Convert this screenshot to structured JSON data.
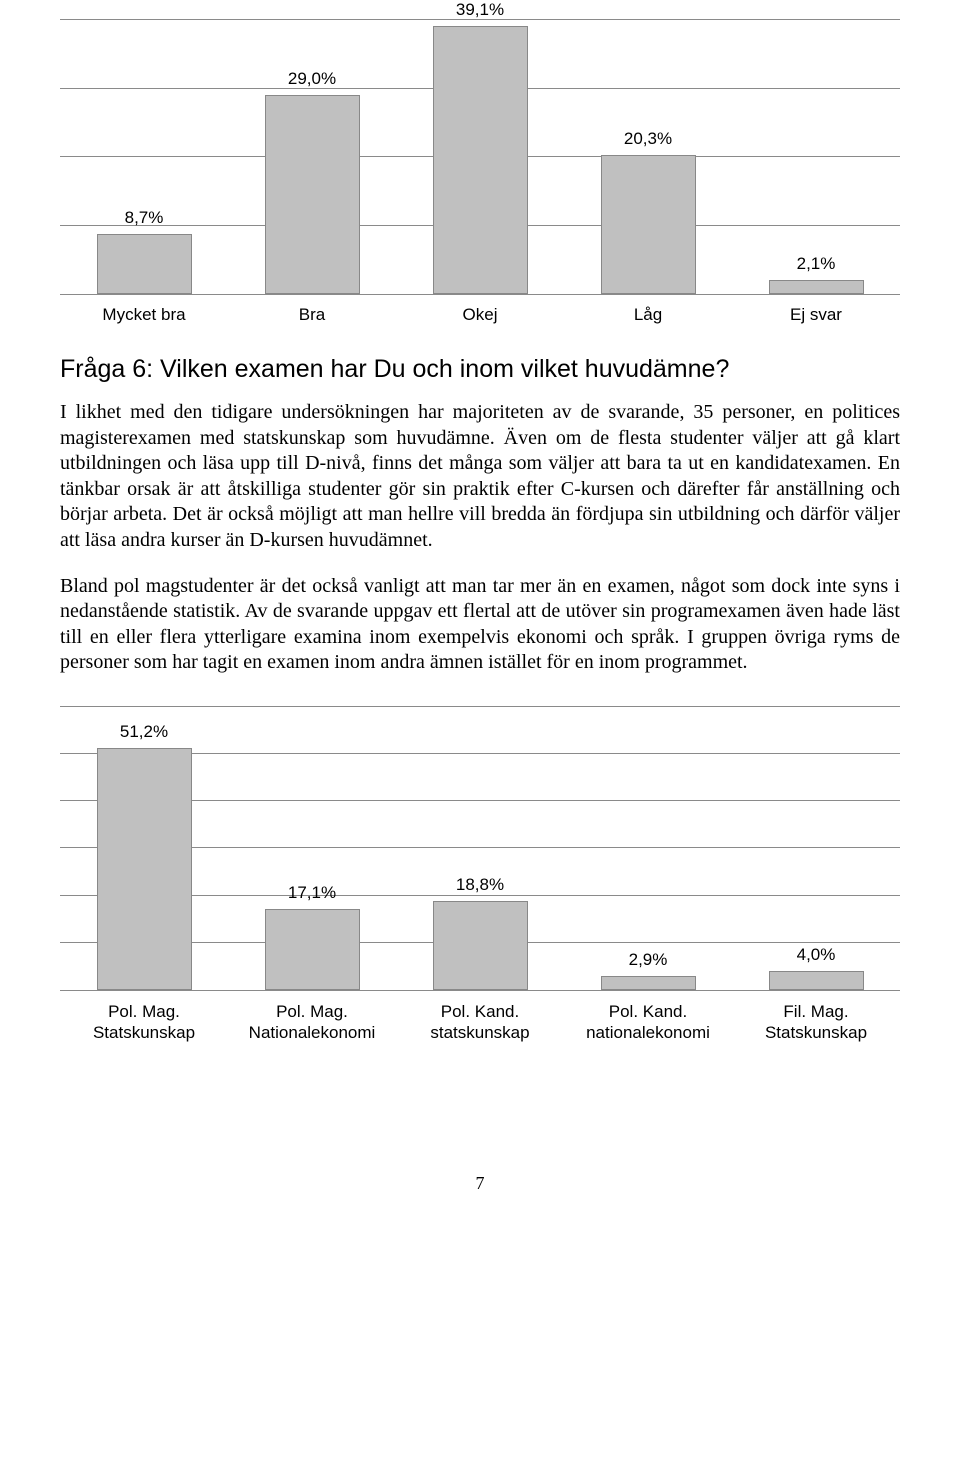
{
  "chart1": {
    "type": "bar",
    "ymax": 40,
    "grid_step": 10,
    "bar_color": "#c0c0c0",
    "bar_border": "#888888",
    "grid_color": "#8a8a8a",
    "label_fontsize": 17,
    "label_font": "Arial",
    "bars": [
      {
        "label": "Mycket bra",
        "value": 8.7,
        "display": "8,7%"
      },
      {
        "label": "Bra",
        "value": 29.0,
        "display": "29,0%"
      },
      {
        "label": "Okej",
        "value": 39.1,
        "display": "39,1%"
      },
      {
        "label": "Låg",
        "value": 20.3,
        "display": "20,3%"
      },
      {
        "label": "Ej svar",
        "value": 2.1,
        "display": "2,1%"
      }
    ]
  },
  "heading": "Fråga 6: Vilken examen har Du och inom vilket huvudämne?",
  "paragraph1": "I likhet med den tidigare undersökningen har majoriteten av de svarande, 35 personer, en politices magisterexamen med statskunskap som huvudämne. Även om de flesta studenter väljer att gå klart utbildningen och läsa upp till D-nivå, finns det många som väljer att bara ta ut en kandidatexamen. En tänkbar orsak är att åtskilliga studenter gör sin praktik efter C-kursen och därefter får anställning och börjar arbeta. Det är också möjligt att man hellre vill bredda än fördjupa sin utbildning och därför väljer att läsa andra kurser än D-kursen huvudämnet.",
  "paragraph2": "Bland pol magstudenter är det också vanligt att man tar mer än en examen, något som dock inte syns i nedanstående statistik. Av de svarande uppgav ett flertal att de utöver sin programexamen även hade läst till en eller flera ytterligare examina inom exempelvis ekonomi och språk. I gruppen övriga ryms de personer som har tagit en examen inom andra ämnen istället för en inom programmet.",
  "chart2": {
    "type": "bar",
    "ymax": 60,
    "grid_step": 10,
    "bar_color": "#c0c0c0",
    "bar_border": "#888888",
    "grid_color": "#8a8a8a",
    "label_fontsize": 17,
    "label_font": "Arial",
    "bars": [
      {
        "label_line1": "Pol. Mag.",
        "label_line2": "Statskunskap",
        "value": 51.2,
        "display": "51,2%"
      },
      {
        "label_line1": "Pol. Mag.",
        "label_line2": "Nationalekonomi",
        "value": 17.1,
        "display": "17,1%"
      },
      {
        "label_line1": "Pol. Kand.",
        "label_line2": "statskunskap",
        "value": 18.8,
        "display": "18,8%"
      },
      {
        "label_line1": "Pol. Kand.",
        "label_line2": "nationalekonomi",
        "value": 2.9,
        "display": "2,9%"
      },
      {
        "label_line1": "Fil. Mag.",
        "label_line2": "Statskunskap",
        "value": 4.0,
        "display": "4,0%"
      }
    ]
  },
  "page_number": "7"
}
